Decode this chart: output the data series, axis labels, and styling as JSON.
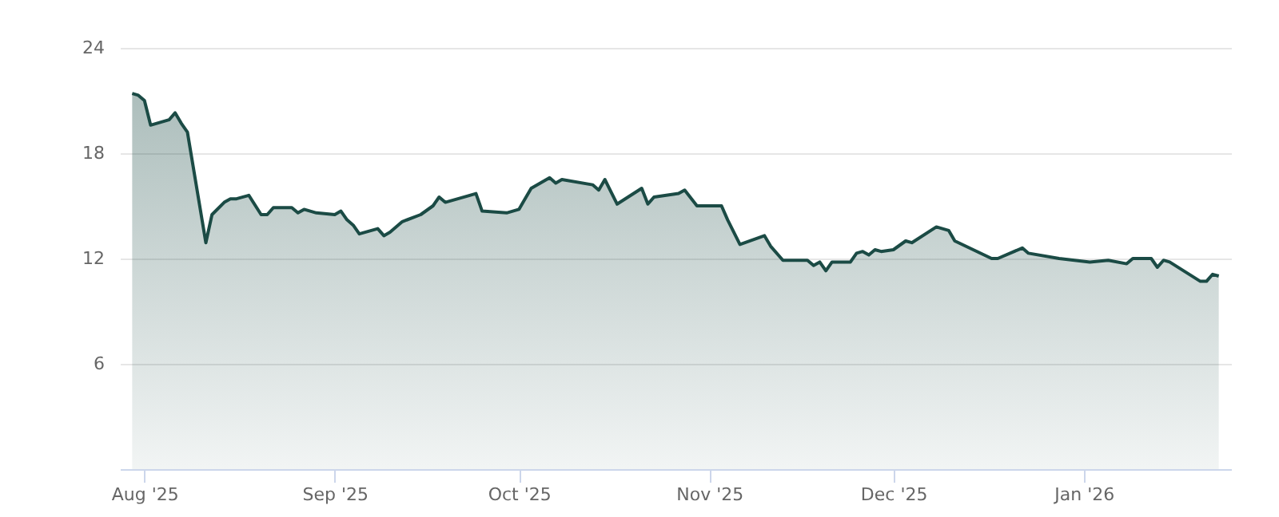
{
  "chart_data": {
    "type": "area",
    "x": [
      "2025-07-30",
      "2025-07-31",
      "2025-08-01",
      "2025-08-02",
      "2025-08-03",
      "2025-08-05",
      "2025-08-06",
      "2025-08-07",
      "2025-08-08",
      "2025-08-11",
      "2025-08-12",
      "2025-08-14",
      "2025-08-15",
      "2025-08-16",
      "2025-08-18",
      "2025-08-20",
      "2025-08-21",
      "2025-08-22",
      "2025-08-25",
      "2025-08-26",
      "2025-08-27",
      "2025-08-29",
      "2025-09-01",
      "2025-09-02",
      "2025-09-03",
      "2025-09-04",
      "2025-09-05",
      "2025-09-08",
      "2025-09-09",
      "2025-09-10",
      "2025-09-12",
      "2025-09-15",
      "2025-09-17",
      "2025-09-18",
      "2025-09-19",
      "2025-09-23",
      "2025-09-24",
      "2025-09-25",
      "2025-09-29",
      "2025-10-01",
      "2025-10-03",
      "2025-10-06",
      "2025-10-07",
      "2025-10-08",
      "2025-10-13",
      "2025-10-14",
      "2025-10-15",
      "2025-10-17",
      "2025-10-21",
      "2025-10-22",
      "2025-10-23",
      "2025-10-27",
      "2025-10-28",
      "2025-10-30",
      "2025-11-03",
      "2025-11-04",
      "2025-11-06",
      "2025-11-10",
      "2025-11-11",
      "2025-11-13",
      "2025-11-17",
      "2025-11-18",
      "2025-11-19",
      "2025-11-20",
      "2025-11-21",
      "2025-11-24",
      "2025-11-25",
      "2025-11-26",
      "2025-11-27",
      "2025-11-28",
      "2025-11-29",
      "2025-12-01",
      "2025-12-03",
      "2025-12-04",
      "2025-12-08",
      "2025-12-10",
      "2025-12-11",
      "2025-12-14",
      "2025-12-17",
      "2025-12-18",
      "2025-12-22",
      "2025-12-23",
      "2025-12-28",
      "2026-01-02",
      "2026-01-05",
      "2026-01-08",
      "2026-01-09",
      "2026-01-12",
      "2026-01-13",
      "2026-01-14",
      "2026-01-15",
      "2026-01-20",
      "2026-01-21",
      "2026-01-22",
      "2026-01-23"
    ],
    "series": [
      {
        "color": "#1b4b45",
        "values": [
          21.4,
          21.3,
          21.0,
          19.6,
          19.7,
          19.9,
          20.3,
          19.7,
          19.2,
          12.9,
          14.5,
          15.2,
          15.4,
          15.4,
          15.6,
          14.5,
          14.5,
          14.9,
          14.9,
          14.6,
          14.8,
          14.6,
          14.5,
          14.7,
          14.2,
          13.9,
          13.4,
          13.7,
          13.3,
          13.5,
          14.1,
          14.5,
          15.0,
          15.5,
          15.2,
          15.6,
          15.7,
          14.7,
          14.6,
          14.8,
          16.0,
          16.6,
          16.3,
          16.5,
          16.2,
          15.9,
          16.5,
          15.1,
          16.0,
          15.1,
          15.5,
          15.7,
          15.9,
          15.0,
          15.0,
          14.2,
          12.8,
          13.3,
          12.7,
          11.9,
          11.9,
          11.6,
          11.8,
          11.3,
          11.8,
          11.8,
          12.3,
          12.4,
          12.2,
          12.5,
          12.4,
          12.5,
          13.0,
          12.9,
          13.8,
          13.6,
          13.0,
          12.5,
          12.0,
          12.0,
          12.6,
          12.3,
          12.0,
          11.8,
          11.9,
          11.7,
          12.0,
          12.0,
          11.5,
          11.9,
          11.8,
          10.7,
          10.7,
          11.1,
          11.0
        ]
      }
    ],
    "xlim": [
      "2025-07-28",
      "2026-01-25"
    ],
    "xticks": [
      {
        "value": "2025-08-01",
        "label": "Aug '25"
      },
      {
        "value": "2025-09-01",
        "label": "Sep '25"
      },
      {
        "value": "2025-10-01",
        "label": "Oct '25"
      },
      {
        "value": "2025-11-01",
        "label": "Nov '25"
      },
      {
        "value": "2025-12-01",
        "label": "Dec '25"
      },
      {
        "value": "2026-01-01",
        "label": "Jan '26"
      }
    ],
    "ylim": [
      0,
      24
    ],
    "yticks": [
      6,
      12,
      18,
      24
    ],
    "grid": "y"
  }
}
